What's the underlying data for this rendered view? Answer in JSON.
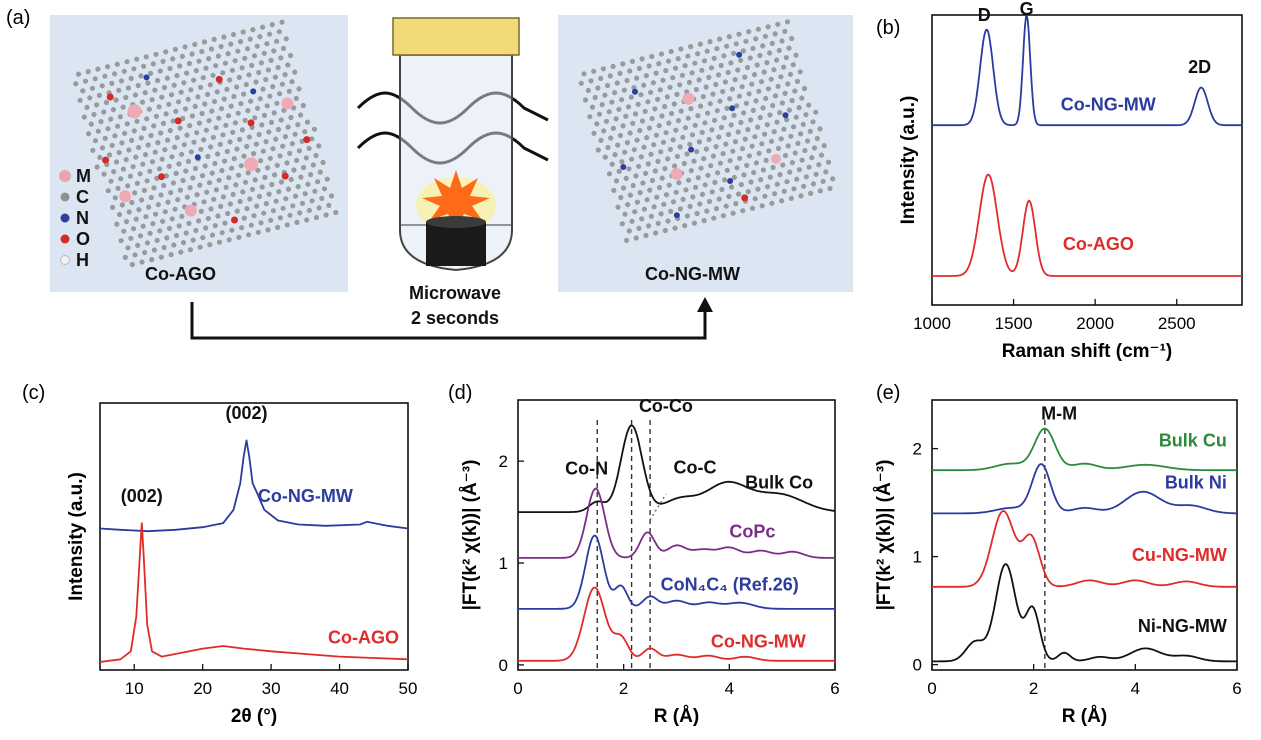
{
  "panel_a": {
    "label": "(a)",
    "left_title": "Co-AGO",
    "right_title": "Co-NG-MW",
    "process_line1": "Microwave",
    "process_line2": "2 seconds",
    "legend": [
      {
        "key": "M",
        "color": "#e9a3ad"
      },
      {
        "key": "C",
        "color": "#8f8f8f"
      },
      {
        "key": "N",
        "color": "#2c3f9c"
      },
      {
        "key": "O",
        "color": "#d42a2a"
      },
      {
        "key": "H",
        "color": "#f2f2f2"
      }
    ],
    "colors": {
      "panel_bg": "#dce6f2",
      "carbon": "#9a9a9a",
      "metal": "#eeaab5",
      "nitrogen": "#2c3f9c",
      "oxygen": "#d42a2a",
      "cap": "#f3da79",
      "flame": "#ff6a1a",
      "glow": "#fff27a"
    }
  },
  "chart_data": [
    {
      "id": "b",
      "panel_label": "(b)",
      "type": "line",
      "xlabel": "Raman shift (cm⁻¹)",
      "ylabel": "Intensity (a.u.)",
      "xlim": [
        1000,
        2900
      ],
      "ylim": [
        0,
        1
      ],
      "xticks": [
        1000,
        1500,
        2000,
        2500
      ],
      "show_yticks": false,
      "series": [
        {
          "name": "Co-NG-MW",
          "color": "#2b3b9e",
          "baseline": 0.62,
          "peaks": [
            [
              1335,
              0.33,
              40
            ],
            [
              1580,
              0.38,
              22
            ],
            [
              2650,
              0.13,
              40
            ]
          ],
          "label_at": [
            2080,
            0.67
          ],
          "label_anchor": "middle"
        },
        {
          "name": "Co-AGO",
          "color": "#e02b2b",
          "baseline": 0.1,
          "peaks": [
            [
              1345,
              0.35,
              55
            ],
            [
              1595,
              0.26,
              38
            ]
          ],
          "label_at": [
            2020,
            0.19
          ],
          "label_anchor": "middle"
        }
      ],
      "annotations": [
        {
          "text": "D",
          "at": [
            1320,
            0.98
          ]
        },
        {
          "text": "G",
          "at": [
            1580,
            1.0
          ]
        },
        {
          "text": "2D",
          "at": [
            2640,
            0.8
          ]
        }
      ]
    },
    {
      "id": "c",
      "panel_label": "(c)",
      "type": "line",
      "xlabel": "2θ (°)",
      "ylabel": "Intensity (a.u.)",
      "xlim": [
        5,
        50
      ],
      "ylim": [
        0,
        1
      ],
      "xticks": [
        10,
        20,
        30,
        40,
        50
      ],
      "show_yticks": false,
      "series": [
        {
          "name": "Co-NG-MW",
          "color": "#2b3b9e",
          "x": [
            5,
            8,
            12,
            16,
            20,
            23,
            24.5,
            25.5,
            26,
            26.4,
            26.8,
            27.3,
            28,
            29,
            31,
            34,
            38,
            43,
            44,
            47,
            50
          ],
          "y": [
            0.53,
            0.525,
            0.52,
            0.525,
            0.535,
            0.55,
            0.6,
            0.7,
            0.8,
            0.86,
            0.8,
            0.7,
            0.66,
            0.6,
            0.56,
            0.545,
            0.54,
            0.545,
            0.555,
            0.54,
            0.53
          ],
          "label_at": [
            35,
            0.63
          ],
          "label_anchor": "middle"
        },
        {
          "name": "Co-AGO",
          "color": "#e02b2b",
          "x": [
            5,
            8,
            9.5,
            10.3,
            10.8,
            11.1,
            11.4,
            11.9,
            12.6,
            14,
            16,
            20,
            23,
            26,
            30,
            35,
            40,
            45,
            50
          ],
          "y": [
            0.03,
            0.04,
            0.07,
            0.2,
            0.42,
            0.55,
            0.42,
            0.17,
            0.07,
            0.05,
            0.06,
            0.08,
            0.09,
            0.08,
            0.07,
            0.06,
            0.05,
            0.045,
            0.04
          ],
          "label_at": [
            43.5,
            0.1
          ],
          "label_anchor": "middle"
        }
      ],
      "annotations": [
        {
          "text": "(002)",
          "at": [
            26.4,
            0.94
          ]
        },
        {
          "text": "(002)",
          "at": [
            11.1,
            0.63
          ]
        }
      ]
    },
    {
      "id": "d",
      "panel_label": "(d)",
      "type": "line",
      "xlabel": "R (Å)",
      "ylabel": "|FT(k² χ(k))| (Å⁻³)",
      "xlim": [
        0,
        6
      ],
      "ylim": [
        -0.05,
        2.6
      ],
      "xticks": [
        0,
        2,
        4,
        6
      ],
      "yticks": [
        0,
        1,
        2
      ],
      "show_yticks": true,
      "series": [
        {
          "name": "Bulk Co",
          "color": "#111111",
          "baseline": 1.5,
          "peaks": [
            [
              1.5,
              0.1,
              0.15
            ],
            [
              2.15,
              0.85,
              0.2
            ],
            [
              3.05,
              0.12,
              0.3
            ],
            [
              3.95,
              0.28,
              0.4
            ],
            [
              4.95,
              0.17,
              0.45
            ]
          ],
          "label_at": [
            4.3,
            1.73
          ],
          "label_anchor": "start"
        },
        {
          "name": "CoPc",
          "color": "#7a2f86",
          "baseline": 1.05,
          "peaks": [
            [
              1.47,
              0.68,
              0.17
            ],
            [
              2.45,
              0.25,
              0.14
            ],
            [
              3.0,
              0.12,
              0.18
            ],
            [
              3.5,
              0.08,
              0.2
            ],
            [
              4.0,
              0.1,
              0.2
            ],
            [
              4.6,
              0.07,
              0.2
            ],
            [
              5.2,
              0.06,
              0.2
            ]
          ],
          "label_at": [
            4.0,
            1.25
          ],
          "label_anchor": "start"
        },
        {
          "name": "CoN₄C₄ (Ref.26)",
          "color": "#2b3b9e",
          "baseline": 0.55,
          "peaks": [
            [
              1.45,
              0.72,
              0.17
            ],
            [
              1.95,
              0.22,
              0.12
            ],
            [
              2.5,
              0.12,
              0.14
            ],
            [
              3.0,
              0.08,
              0.2
            ],
            [
              3.6,
              0.06,
              0.2
            ],
            [
              4.2,
              0.06,
              0.25
            ]
          ],
          "label_at": [
            2.7,
            0.73
          ],
          "label_anchor": "start"
        },
        {
          "name": "Co-NG-MW",
          "color": "#e02b2b",
          "baseline": 0.04,
          "peaks": [
            [
              1.45,
              0.72,
              0.2
            ],
            [
              1.95,
              0.22,
              0.14
            ],
            [
              2.5,
              0.12,
              0.14
            ],
            [
              3.0,
              0.06,
              0.2
            ],
            [
              3.6,
              0.05,
              0.2
            ],
            [
              4.3,
              0.04,
              0.2
            ]
          ],
          "label_at": [
            3.65,
            0.17
          ],
          "label_anchor": "start"
        }
      ],
      "annotations": [
        {
          "text": "Co-N",
          "at": [
            1.3,
            1.87
          ]
        },
        {
          "text": "Co-Co",
          "at": [
            2.8,
            2.48
          ]
        },
        {
          "text": "Co-C",
          "at": [
            3.35,
            1.88
          ]
        }
      ],
      "dashed_x": [
        1.5,
        2.15,
        2.5
      ]
    },
    {
      "id": "e",
      "panel_label": "(e)",
      "type": "line",
      "xlabel": "R (Å)",
      "ylabel": "|FT(k² χ(k))| (Å⁻³)",
      "xlim": [
        0,
        6
      ],
      "ylim": [
        -0.05,
        2.45
      ],
      "xticks": [
        0,
        2,
        4,
        6
      ],
      "yticks": [
        0,
        1,
        2
      ],
      "show_yticks": true,
      "series": [
        {
          "name": "Bulk Cu",
          "color": "#2d8a3a",
          "baseline": 1.8,
          "peaks": [
            [
              1.55,
              0.06,
              0.3
            ],
            [
              2.22,
              0.38,
              0.2
            ],
            [
              3.0,
              0.06,
              0.25
            ],
            [
              4.2,
              0.05,
              0.4
            ]
          ],
          "label_at": [
            5.8,
            2.02
          ],
          "label_anchor": "end"
        },
        {
          "name": "Bulk Ni",
          "color": "#2b3b9e",
          "baseline": 1.4,
          "peaks": [
            [
              1.55,
              0.05,
              0.3
            ],
            [
              2.15,
              0.45,
              0.18
            ],
            [
              3.0,
              0.05,
              0.25
            ],
            [
              4.15,
              0.2,
              0.35
            ],
            [
              5.1,
              0.07,
              0.3
            ]
          ],
          "label_at": [
            5.8,
            1.63
          ],
          "label_anchor": "end"
        },
        {
          "name": "Cu-NG-MW",
          "color": "#e02b2b",
          "baseline": 0.72,
          "peaks": [
            [
              1.4,
              0.7,
              0.22
            ],
            [
              1.95,
              0.45,
              0.17
            ],
            [
              3.1,
              0.06,
              0.25
            ],
            [
              4.0,
              0.06,
              0.25
            ],
            [
              5.0,
              0.05,
              0.25
            ]
          ],
          "label_at": [
            5.8,
            0.96
          ],
          "label_anchor": "end"
        },
        {
          "name": "Ni-NG-MW",
          "color": "#111111",
          "baseline": 0.03,
          "peaks": [
            [
              0.85,
              0.18,
              0.18
            ],
            [
              1.45,
              0.9,
              0.2
            ],
            [
              1.98,
              0.48,
              0.14
            ],
            [
              2.6,
              0.08,
              0.12
            ],
            [
              3.3,
              0.04,
              0.2
            ],
            [
              4.2,
              0.12,
              0.3
            ],
            [
              5.0,
              0.05,
              0.25
            ]
          ],
          "label_at": [
            5.8,
            0.3
          ],
          "label_anchor": "end"
        }
      ],
      "annotations": [
        {
          "text": "M-M",
          "at": [
            2.5,
            2.27
          ]
        }
      ],
      "dashed_x": [
        2.22
      ]
    }
  ]
}
